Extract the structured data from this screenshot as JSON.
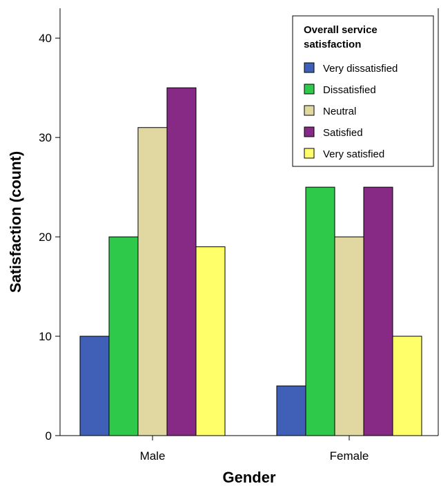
{
  "chart_data": {
    "type": "bar",
    "xlabel": "Gender",
    "ylabel": "Satisfaction (count)",
    "categories": [
      "Male",
      "Female"
    ],
    "ylim": [
      0,
      43
    ],
    "yticks": [
      0,
      10,
      20,
      30,
      40
    ],
    "grid": false,
    "legend": {
      "title_lines": [
        "Overall service",
        "satisfaction"
      ],
      "placement": "top-right"
    },
    "series": [
      {
        "name": "Very dissatisfied",
        "color": "#4060b8",
        "values": [
          10,
          5
        ]
      },
      {
        "name": "Dissatisfied",
        "color": "#2ec84a",
        "values": [
          20,
          25
        ]
      },
      {
        "name": "Neutral",
        "color": "#e0d8a0",
        "values": [
          31,
          20
        ]
      },
      {
        "name": "Satisfied",
        "color": "#862a86",
        "values": [
          35,
          25
        ]
      },
      {
        "name": "Very satisfied",
        "color": "#ffff6a",
        "values": [
          19,
          10
        ]
      }
    ]
  }
}
